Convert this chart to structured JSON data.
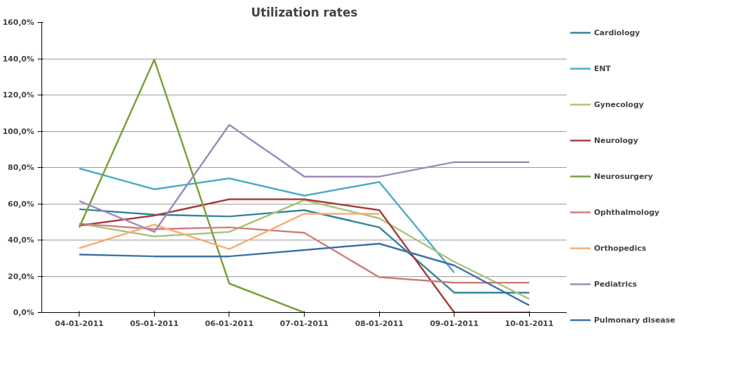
{
  "chart_data": {
    "type": "line",
    "title": "Utilization rates",
    "categories": [
      "04-01-2011",
      "05-01-2011",
      "06-01-2011",
      "07-01-2011",
      "08-01-2011",
      "09-01-2011",
      "10-01-2011"
    ],
    "series": [
      {
        "name": "Cardiology",
        "color": "#31849b",
        "values": [
          57,
          54,
          53,
          56.5,
          47,
          11,
          11
        ]
      },
      {
        "name": "ENT",
        "color": "#4bacc6",
        "values": [
          79.5,
          68,
          74,
          64.5,
          72,
          22,
          null
        ]
      },
      {
        "name": "Gynecology",
        "color": "#a9c47a",
        "values": [
          49,
          42,
          44.5,
          62,
          52,
          28,
          7.5
        ]
      },
      {
        "name": "Neurology",
        "color": "#a83c3a",
        "values": [
          48,
          53.5,
          62.5,
          62.5,
          56.5,
          0,
          0
        ]
      },
      {
        "name": "Neurosurgery",
        "color": "#77a03b",
        "values": [
          47,
          139.5,
          16,
          0,
          null,
          null,
          null
        ]
      },
      {
        "name": "Ophthalmology",
        "color": "#cf7d7b",
        "values": [
          49,
          46,
          47,
          44,
          19.5,
          16.5,
          16.5
        ]
      },
      {
        "name": "Orthopedics",
        "color": "#f7ad78",
        "values": [
          35.5,
          48.5,
          35,
          54.5,
          54.5,
          null,
          null
        ]
      },
      {
        "name": "Pediatrics",
        "color": "#9f8ab8",
        "values": [
          61.5,
          44.5,
          103.5,
          75,
          75,
          83,
          83
        ]
      },
      {
        "name": "Pulmonary disease",
        "color": "#3d6fa8",
        "values": [
          32,
          31,
          31,
          34.5,
          38,
          26,
          4
        ]
      }
    ],
    "ylim": [
      0,
      160
    ],
    "yticks": [
      {
        "value": 0,
        "label": "0,0%"
      },
      {
        "value": 20,
        "label": "20,0%"
      },
      {
        "value": 40,
        "label": "40,0%"
      },
      {
        "value": 60,
        "label": "60,0%"
      },
      {
        "value": 80,
        "label": "80,0%"
      },
      {
        "value": 100,
        "label": "100,0%"
      },
      {
        "value": 120,
        "label": "120,0%"
      },
      {
        "value": 140,
        "label": "140,0%"
      },
      {
        "value": 160,
        "label": "160,0%"
      }
    ],
    "grid": "y",
    "legend": "right",
    "marker": "none",
    "line_style": "solid"
  }
}
